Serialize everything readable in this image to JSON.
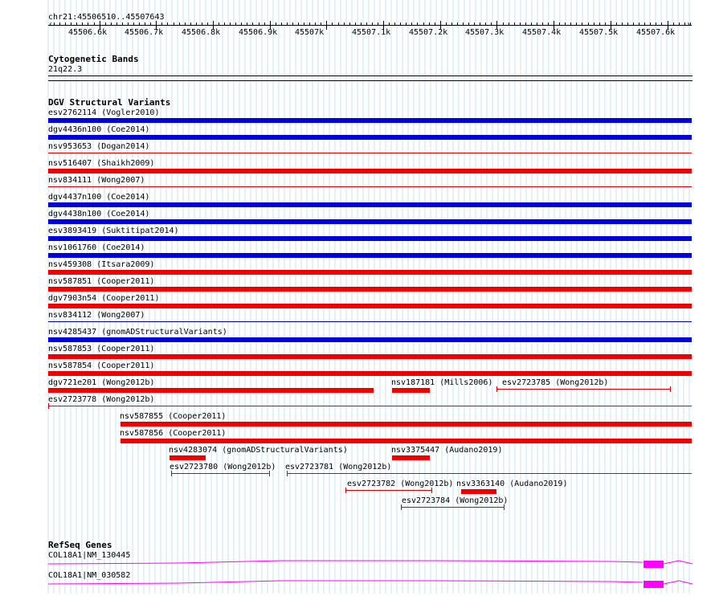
{
  "ruler": {
    "position": "chr21:45506510..45507643",
    "ticks": [
      "45506.6k",
      "45506.7k",
      "45506.8k",
      "45506.9k",
      "45507k",
      "45507.1k",
      "45507.2k",
      "45507.3k",
      "45507.4k",
      "45507.5k",
      "45507.6k"
    ],
    "start": 45506510,
    "end": 45507643
  },
  "tracks": {
    "cytoband": {
      "title": "Cytogenetic Bands",
      "band": "21q22.3"
    },
    "dgv": {
      "title": "DGV Structural Variants",
      "features": [
        {
          "label": "esv2762114 (Vogler2010)",
          "start": 45506510,
          "end": 45507643,
          "color": "#0000dd",
          "style": "thick"
        },
        {
          "label": "dgv4436n100 (Coe2014)",
          "start": 45506510,
          "end": 45507643,
          "color": "#0000dd",
          "style": "thick"
        },
        {
          "label": "nsv953653 (Dogan2014)",
          "start": 45506510,
          "end": 45507643,
          "color": "#dd0000",
          "style": "thin"
        },
        {
          "label": "nsv516407 (Shaikh2009)",
          "start": 45506510,
          "end": 45507643,
          "color": "#ee0000",
          "style": "thick"
        },
        {
          "label": "nsv834111 (Wong2007)",
          "start": 45506510,
          "end": 45507643,
          "color": "#dd0000",
          "style": "thin"
        },
        {
          "label": "dgv4437n100 (Coe2014)",
          "start": 45506510,
          "end": 45507643,
          "color": "#0000dd",
          "style": "thick"
        },
        {
          "label": "dgv4438n100 (Coe2014)",
          "start": 45506510,
          "end": 45507643,
          "color": "#0000dd",
          "style": "thick"
        },
        {
          "label": "esv3893419 (Suktitipat2014)",
          "start": 45506510,
          "end": 45507643,
          "color": "#0000dd",
          "style": "thick"
        },
        {
          "label": "nsv1061760 (Coe2014)",
          "start": 45506510,
          "end": 45507643,
          "color": "#0000dd",
          "style": "thick"
        },
        {
          "label": "nsv459308 (Itsara2009)",
          "start": 45506510,
          "end": 45507643,
          "color": "#ee0000",
          "style": "thick"
        },
        {
          "label": "nsv587851 (Cooper2011)",
          "start": 45506510,
          "end": 45507643,
          "color": "#ee0000",
          "style": "thick"
        },
        {
          "label": "dgv7903n54 (Cooper2011)",
          "start": 45506510,
          "end": 45507643,
          "color": "#ee0000",
          "style": "thick"
        },
        {
          "label": "nsv834112 (Wong2007)",
          "start": 45506510,
          "end": 45507643,
          "color": "#0000aa",
          "style": "thin"
        },
        {
          "label": "nsv4285437 (gnomADStructuralVariants)",
          "start": 45506510,
          "end": 45507643,
          "color": "#0000dd",
          "style": "thick"
        },
        {
          "label": "nsv587853 (Cooper2011)",
          "start": 45506510,
          "end": 45507643,
          "color": "#ee0000",
          "style": "thick"
        },
        {
          "label": "nsv587854 (Cooper2011)",
          "start": 45506510,
          "end": 45507643,
          "color": "#ee0000",
          "style": "thick"
        },
        {
          "label": "dgv721e201 (Wong2012b)",
          "start": 45506510,
          "end": 45507083,
          "color": "#ee0000",
          "style": "thick"
        },
        {
          "label": "nsv187181 (Mills2006)",
          "start": 45507116,
          "end": 45507182,
          "color": "#ee0000",
          "style": "thick"
        },
        {
          "label": "esv2723785 (Wong2012b)",
          "start": 45507300,
          "end": 45507605,
          "color": "#dd0000",
          "style": "ticked"
        },
        {
          "label": "esv2723778 (Wong2012b)",
          "start": 45506510,
          "end": 45507643,
          "color": "#dd0000",
          "style": "ticked-start"
        },
        {
          "label": "nsv587855 (Cooper2011)",
          "start": 45506637,
          "end": 45507643,
          "color": "#ee0000",
          "style": "thick"
        },
        {
          "label": "nsv587856 (Cooper2011)",
          "start": 45506637,
          "end": 45507643,
          "color": "#ee0000",
          "style": "thick"
        },
        {
          "label": "nsv4283074 (gnomADStructuralVariants)",
          "start": 45506723,
          "end": 45506787,
          "color": "#ee0000",
          "style": "thick"
        },
        {
          "label": "nsv3375447 (Audano2019)",
          "start": 45507116,
          "end": 45507182,
          "color": "#ee0000",
          "style": "thick"
        },
        {
          "label": "esv2723780 (Wong2012b)",
          "start": 45506726,
          "end": 45506899,
          "color": "#dd0000",
          "style": "ticked"
        },
        {
          "label": "esv2723781 (Wong2012b)",
          "start": 45506930,
          "end": 45507643,
          "color": "#dd0000",
          "style": "ticked-start"
        },
        {
          "label": "esv2723782 (Wong2012b)",
          "start": 45507034,
          "end": 45507185,
          "color": "#dd0000",
          "style": "ticked"
        },
        {
          "label": "nsv3363140 (Audano2019)",
          "start": 45507237,
          "end": 45507300,
          "color": "#ee0000",
          "style": "thick"
        },
        {
          "label": "esv2723784 (Wong2012b)",
          "start": 45507131,
          "end": 45507312,
          "color": "#dd0000",
          "style": "ticked"
        }
      ]
    },
    "refseq": {
      "title": "RefSeq Genes",
      "genes": [
        {
          "label": "COL18A1|NM_130445",
          "color": "#ff00ff"
        },
        {
          "label": "COL18A1|NM_030582",
          "color": "#ff00ff"
        }
      ]
    }
  }
}
